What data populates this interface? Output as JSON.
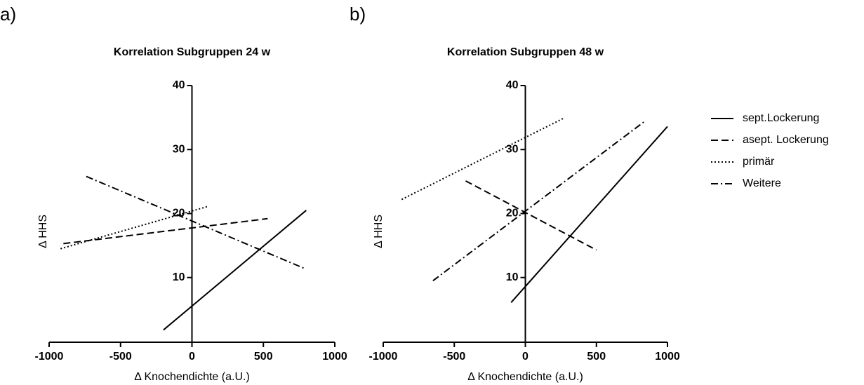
{
  "chart_data": [
    {
      "type": "line",
      "label": "a)",
      "title": "Korrelation Subgruppen 24 w",
      "xlabel": "Δ Knochendichte (a.U.)",
      "ylabel": "Δ HHS",
      "xlim": [
        -1000,
        1000
      ],
      "xticks": [
        -1000,
        -500,
        0,
        500,
        1000
      ],
      "ylim": [
        0,
        40
      ],
      "yticks": [
        10,
        20,
        30,
        40
      ],
      "series": [
        {
          "color": "#000000",
          "linestyle": "solid",
          "x": [
            -200,
            800
          ],
          "values": [
            1.8,
            20.5
          ]
        },
        {
          "color": "#000000",
          "linestyle": "dashed",
          "x": [
            -900,
            530
          ],
          "values": [
            15.3,
            19.2
          ]
        },
        {
          "color": "#000000",
          "linestyle": "dotted",
          "x": [
            -920,
            110
          ],
          "values": [
            14.5,
            21.1
          ]
        },
        {
          "color": "#000000",
          "linestyle": "dashdot",
          "x": [
            -740,
            790
          ],
          "values": [
            25.8,
            11.4
          ]
        }
      ]
    },
    {
      "type": "line",
      "label": "b)",
      "title": "Korrelation Subgruppen 48 w",
      "xlabel": "Δ Knochendichte (a.U.)",
      "ylabel": "Δ HHS",
      "xlim": [
        -1000,
        1000
      ],
      "xticks": [
        -1000,
        -500,
        0,
        500,
        1000
      ],
      "ylim": [
        0,
        40
      ],
      "yticks": [
        10,
        20,
        30,
        40
      ],
      "legend": "right",
      "series": [
        {
          "name": "sept.Lockerung",
          "color": "#000000",
          "linestyle": "solid",
          "x": [
            -100,
            1000
          ],
          "values": [
            6.1,
            33.6
          ]
        },
        {
          "name": "asept. Lockerung",
          "color": "#000000",
          "linestyle": "dashed",
          "x": [
            -420,
            500
          ],
          "values": [
            25.1,
            14.3
          ]
        },
        {
          "name": "primär",
          "color": "#000000",
          "linestyle": "dotted",
          "x": [
            -870,
            270
          ],
          "values": [
            22.2,
            34.9
          ]
        },
        {
          "name": "Weitere",
          "color": "#000000",
          "linestyle": "dashdot",
          "x": [
            -650,
            845
          ],
          "values": [
            9.5,
            34.5
          ]
        }
      ]
    }
  ]
}
